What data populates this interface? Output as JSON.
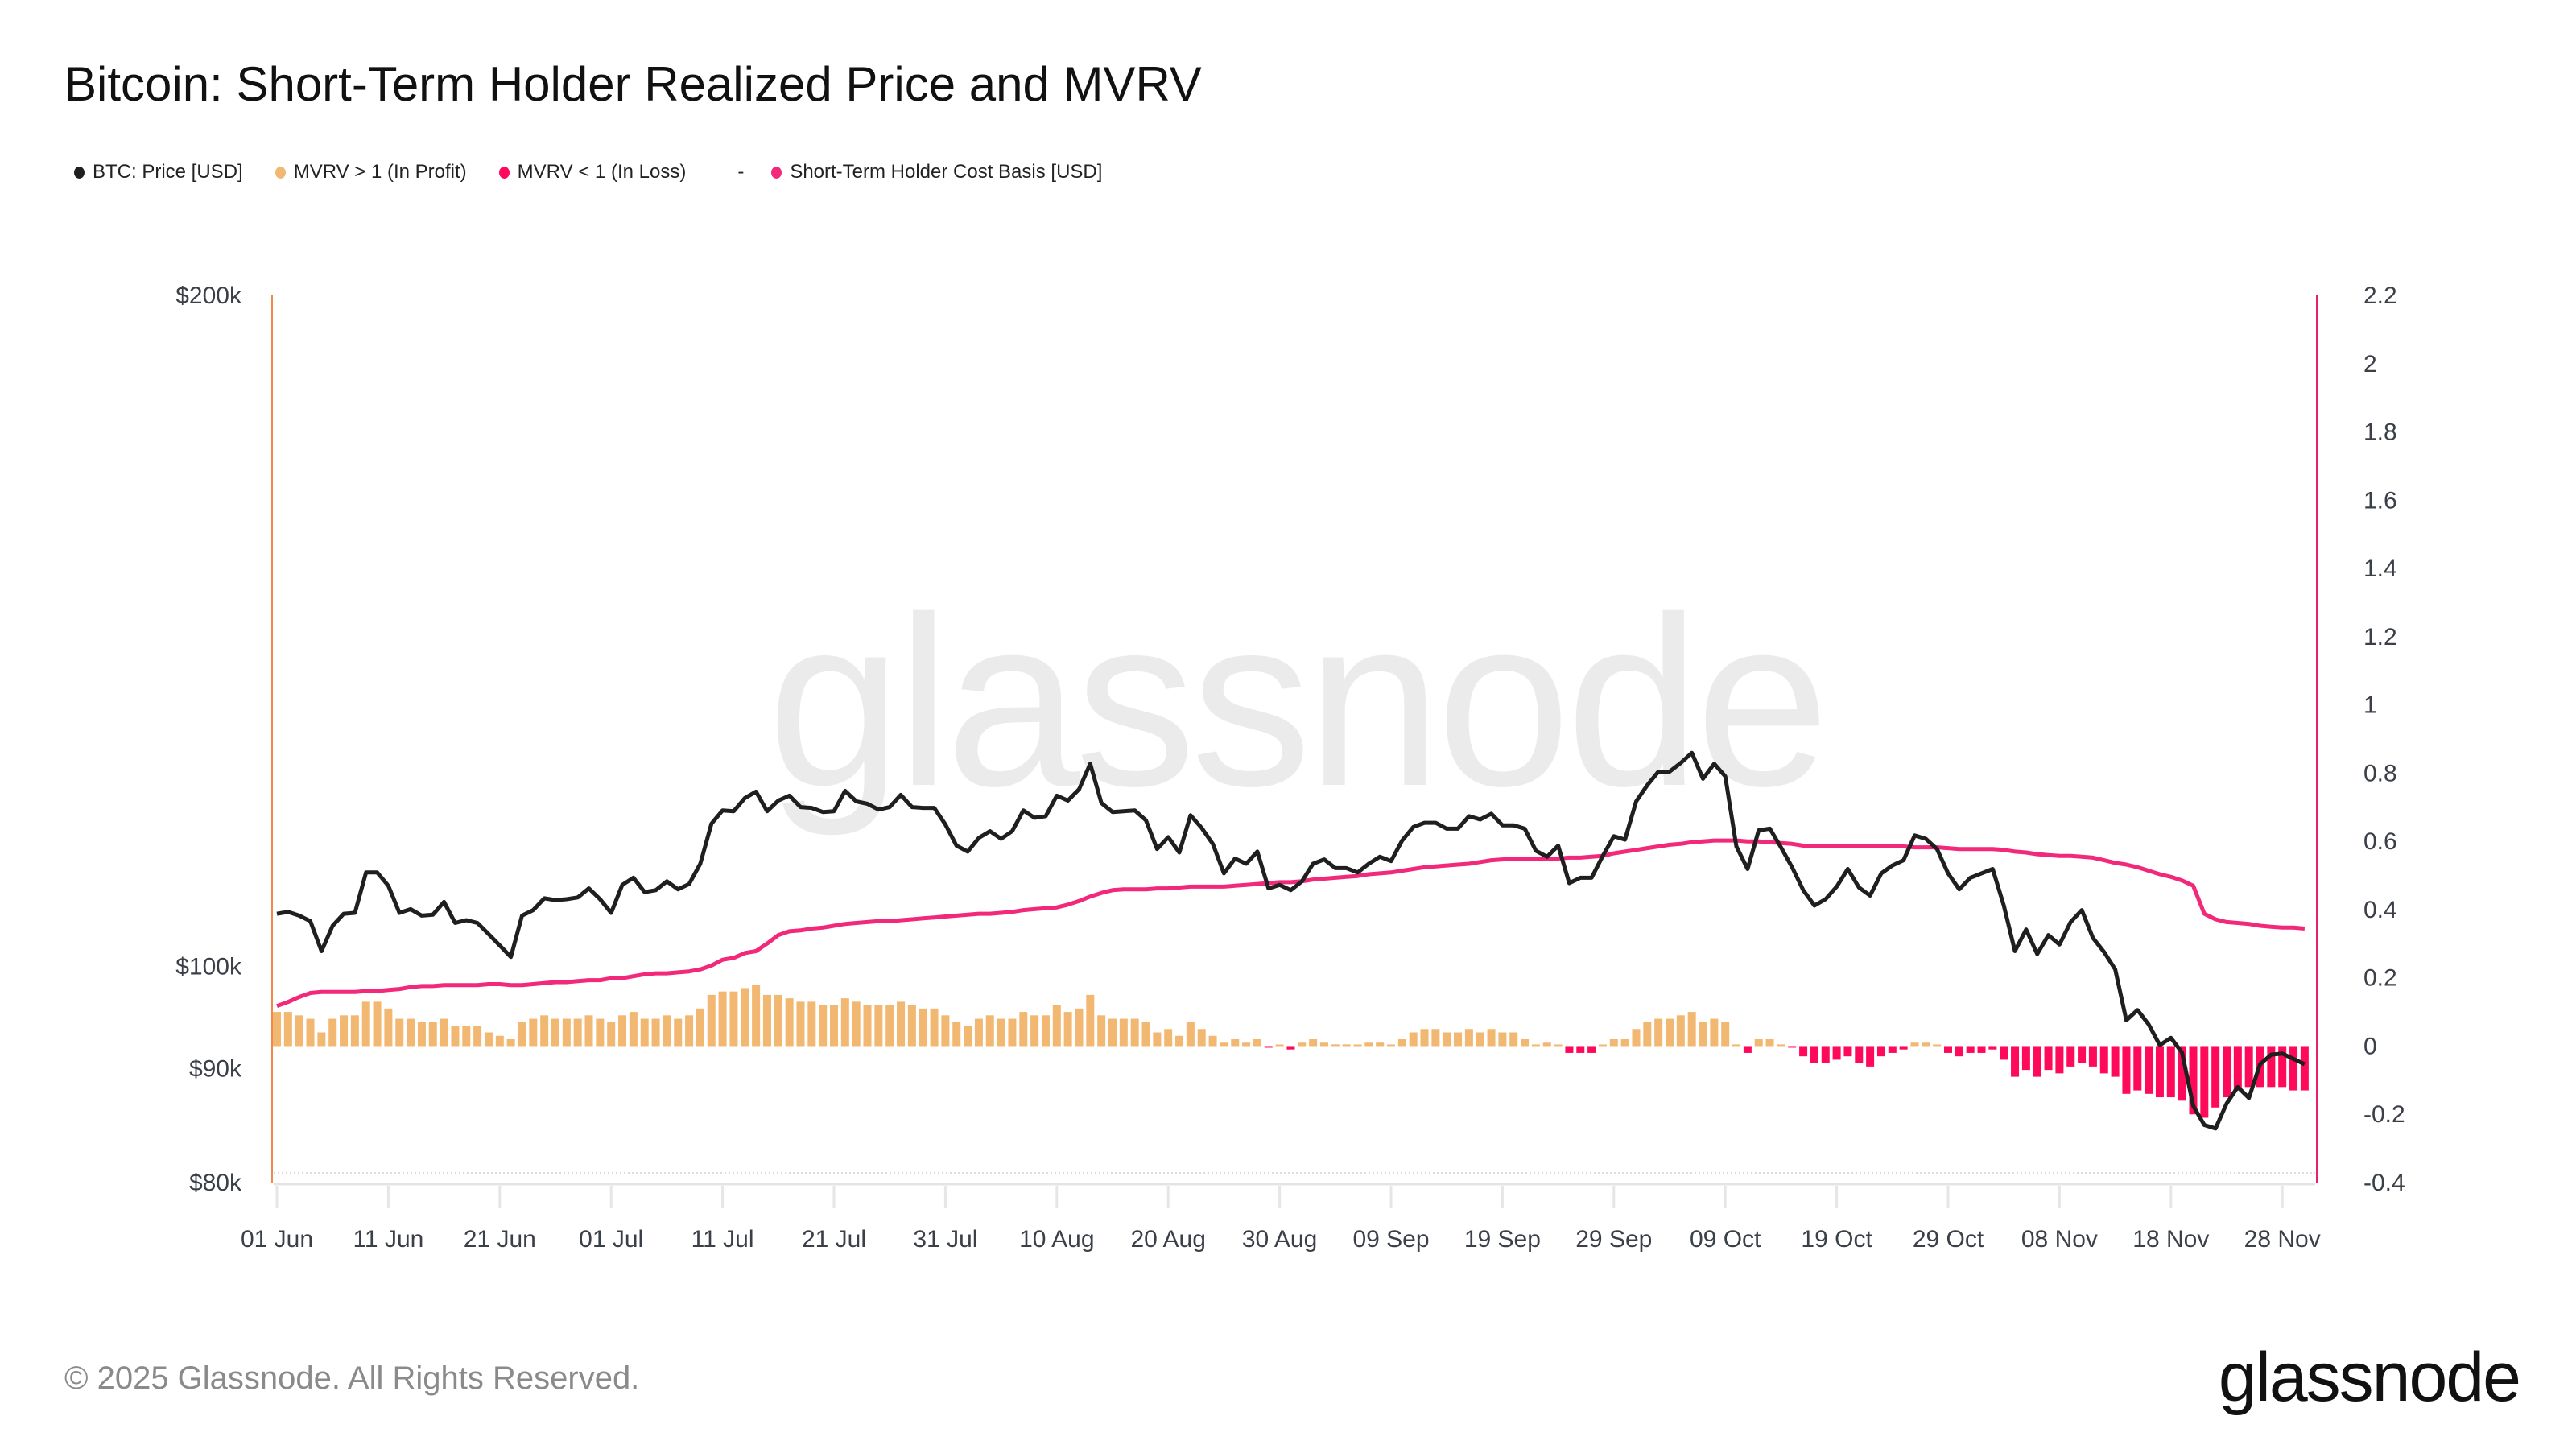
{
  "header": {
    "title": "Bitcoin: Short-Term Holder Realized Price and MVRV"
  },
  "legend": {
    "items": [
      {
        "label": "BTC: Price [USD]",
        "color": "#1f1f1f"
      },
      {
        "label": "MVRV > 1 (In Profit)",
        "color": "#f2b872"
      },
      {
        "label": "MVRV < 1 (In Loss)",
        "color": "#ff0a5b"
      },
      {
        "label": "Short-Term Holder Cost Basis [USD]",
        "color": "#f2287a"
      }
    ],
    "separator": "-"
  },
  "footer": {
    "copyright": "© 2025 Glassnode. All Rights Reserved.",
    "logo": "glassnode",
    "watermark": "glassnode"
  },
  "chart_data": {
    "type": "line",
    "title": "Bitcoin: Short-Term Holder Realized Price and MVRV",
    "xlabel": "",
    "ylabel": "",
    "grid": false,
    "legend_position": "top-left",
    "x_start": "2025-06-01",
    "x_end": "2025-11-30",
    "x_ticks": [
      "01 Jun",
      "11 Jun",
      "21 Jun",
      "01 Jul",
      "11 Jul",
      "21 Jul",
      "31 Jul",
      "10 Aug",
      "20 Aug",
      "30 Aug",
      "09 Sep",
      "19 Sep",
      "29 Sep",
      "09 Oct",
      "19 Oct",
      "29 Oct",
      "08 Nov",
      "18 Nov",
      "28 Nov"
    ],
    "y_left": {
      "scale": "log",
      "range": [
        80000,
        200000
      ],
      "ticks": [
        "$200k",
        "$100k",
        "$90k",
        "$80k"
      ],
      "tick_values": [
        200000,
        100000,
        90000,
        80000
      ]
    },
    "y_right": {
      "scale": "linear",
      "range": [
        -0.4,
        2.2
      ],
      "ticks": [
        "2.2",
        "2",
        "1.8",
        "1.6",
        "1.4",
        "1.2",
        "1",
        "0.8",
        "0.6",
        "0.4",
        "0.2",
        "0",
        "-0.2",
        "-0.4"
      ],
      "tick_values": [
        2.2,
        2,
        1.8,
        1.6,
        1.4,
        1.2,
        1,
        0.8,
        0.6,
        0.4,
        0.2,
        0,
        -0.2,
        -0.4
      ]
    },
    "series": [
      {
        "name": "BTC: Price [USD]",
        "axis": "left",
        "kind": "line",
        "unit": "USD thousands",
        "values": [
          105.6,
          105.8,
          105.4,
          104.8,
          101.6,
          104.3,
          105.6,
          105.7,
          110.2,
          110.2,
          108.7,
          105.7,
          106.1,
          105.4,
          105.5,
          106.9,
          104.6,
          104.9,
          104.6,
          103.4,
          102.2,
          101.0,
          105.4,
          106.0,
          107.3,
          107.1,
          107.2,
          107.4,
          108.4,
          107.2,
          105.7,
          108.8,
          109.6,
          108.0,
          108.2,
          109.2,
          108.3,
          108.9,
          111.2,
          115.9,
          117.5,
          117.4,
          119.0,
          119.8,
          117.4,
          118.7,
          119.3,
          117.9,
          117.8,
          117.3,
          117.4,
          119.9,
          118.6,
          118.3,
          117.6,
          117.9,
          119.4,
          117.9,
          117.8,
          117.8,
          115.8,
          113.3,
          112.6,
          114.2,
          115.0,
          114.1,
          115.0,
          117.5,
          116.6,
          116.8,
          119.3,
          118.7,
          120.1,
          123.3,
          118.4,
          117.3,
          117.4,
          117.5,
          116.3,
          112.9,
          114.3,
          112.5,
          116.9,
          115.4,
          113.5,
          110.1,
          111.8,
          111.2,
          112.6,
          108.4,
          108.8,
          108.2,
          109.2,
          111.2,
          111.7,
          110.7,
          110.7,
          110.2,
          111.2,
          112.0,
          111.5,
          113.9,
          115.5,
          116.0,
          116.0,
          115.3,
          115.3,
          116.8,
          116.4,
          117.1,
          115.7,
          115.7,
          115.3,
          112.7,
          112.0,
          113.3,
          109.0,
          109.6,
          109.6,
          112.1,
          114.4,
          114.0,
          118.6,
          120.6,
          122.3,
          122.3,
          123.4,
          124.7,
          121.4,
          123.3,
          121.7,
          113.2,
          110.6,
          115.1,
          115.3,
          113.1,
          110.8,
          108.2,
          106.5,
          107.2,
          108.6,
          110.6,
          108.5,
          107.6,
          110.1,
          111.0,
          111.6,
          114.5,
          114.1,
          112.9,
          110.1,
          108.3,
          109.6,
          110.1,
          110.6,
          106.5,
          101.6,
          103.9,
          101.3,
          103.3,
          102.3,
          104.7,
          106.0,
          103.0,
          101.5,
          99.7,
          94.6,
          95.6,
          94.2,
          92.2,
          92.9,
          91.5,
          86.6,
          84.9,
          84.6,
          86.8,
          88.3,
          87.3,
          90.4,
          91.3,
          91.4,
          90.9,
          90.4
        ]
      },
      {
        "name": "Short-Term Holder Cost Basis [USD]",
        "axis": "left",
        "kind": "line",
        "unit": "USD thousands",
        "values": [
          96.0,
          96.4,
          96.9,
          97.3,
          97.4,
          97.4,
          97.4,
          97.4,
          97.5,
          97.5,
          97.6,
          97.7,
          97.9,
          98.0,
          98.0,
          98.1,
          98.1,
          98.1,
          98.1,
          98.2,
          98.2,
          98.1,
          98.1,
          98.2,
          98.3,
          98.4,
          98.4,
          98.5,
          98.6,
          98.6,
          98.8,
          98.8,
          99.0,
          99.2,
          99.3,
          99.3,
          99.4,
          99.5,
          99.7,
          100.1,
          100.7,
          100.9,
          101.4,
          101.6,
          102.4,
          103.3,
          103.7,
          103.8,
          104.0,
          104.1,
          104.3,
          104.5,
          104.6,
          104.7,
          104.8,
          104.8,
          104.9,
          105.0,
          105.1,
          105.2,
          105.3,
          105.4,
          105.5,
          105.6,
          105.6,
          105.7,
          105.8,
          106.0,
          106.1,
          106.2,
          106.3,
          106.6,
          107.0,
          107.5,
          107.9,
          108.2,
          108.3,
          108.3,
          108.3,
          108.4,
          108.4,
          108.5,
          108.6,
          108.6,
          108.6,
          108.6,
          108.7,
          108.8,
          108.9,
          109.0,
          109.1,
          109.1,
          109.2,
          109.4,
          109.5,
          109.6,
          109.7,
          109.8,
          110.0,
          110.1,
          110.2,
          110.4,
          110.6,
          110.8,
          110.9,
          111.0,
          111.1,
          111.2,
          111.4,
          111.6,
          111.7,
          111.8,
          111.8,
          111.8,
          111.8,
          111.8,
          111.9,
          111.9,
          112.0,
          112.1,
          112.4,
          112.6,
          112.8,
          113.0,
          113.2,
          113.4,
          113.5,
          113.7,
          113.8,
          113.9,
          113.9,
          113.9,
          113.8,
          113.8,
          113.7,
          113.6,
          113.5,
          113.3,
          113.3,
          113.3,
          113.3,
          113.3,
          113.3,
          113.3,
          113.2,
          113.2,
          113.2,
          113.1,
          113.1,
          113.1,
          113.0,
          112.9,
          112.9,
          112.9,
          112.9,
          112.8,
          112.6,
          112.5,
          112.3,
          112.2,
          112.1,
          112.1,
          112.0,
          111.9,
          111.6,
          111.3,
          111.1,
          110.8,
          110.4,
          110.0,
          109.7,
          109.3,
          108.7,
          105.6,
          105.0,
          104.7,
          104.6,
          104.5,
          104.3,
          104.2,
          104.1,
          104.1,
          104.0
        ]
      },
      {
        "name": "MVRV",
        "axis": "right",
        "kind": "bar",
        "note": "positive bars = MVRV > 1 (In Profit), negative bars = MVRV < 1 (In Loss)",
        "values": [
          0.1,
          0.1,
          0.09,
          0.08,
          0.04,
          0.08,
          0.09,
          0.09,
          0.13,
          0.13,
          0.11,
          0.08,
          0.08,
          0.07,
          0.07,
          0.08,
          0.06,
          0.06,
          0.06,
          0.04,
          0.03,
          0.02,
          0.07,
          0.08,
          0.09,
          0.08,
          0.08,
          0.08,
          0.09,
          0.08,
          0.07,
          0.09,
          0.1,
          0.08,
          0.08,
          0.09,
          0.08,
          0.09,
          0.11,
          0.15,
          0.16,
          0.16,
          0.17,
          0.18,
          0.15,
          0.15,
          0.14,
          0.13,
          0.13,
          0.12,
          0.12,
          0.14,
          0.13,
          0.12,
          0.12,
          0.12,
          0.13,
          0.12,
          0.11,
          0.11,
          0.09,
          0.07,
          0.06,
          0.08,
          0.09,
          0.08,
          0.08,
          0.1,
          0.09,
          0.09,
          0.12,
          0.1,
          0.11,
          0.15,
          0.09,
          0.08,
          0.08,
          0.08,
          0.07,
          0.04,
          0.05,
          0.03,
          0.07,
          0.05,
          0.03,
          0.01,
          0.02,
          0.01,
          0.02,
          -0.003,
          0.002,
          -0.01,
          0.01,
          0.02,
          0.01,
          0.005,
          0.005,
          0.003,
          0.01,
          0.01,
          0.004,
          0.02,
          0.04,
          0.05,
          0.05,
          0.04,
          0.04,
          0.05,
          0.04,
          0.05,
          0.04,
          0.04,
          0.02,
          0.003,
          0.01,
          0.003,
          -0.02,
          -0.02,
          -0.02,
          0.004,
          0.02,
          0.02,
          0.05,
          0.07,
          0.08,
          0.08,
          0.09,
          0.1,
          0.07,
          0.08,
          0.07,
          0.002,
          -0.02,
          0.02,
          0.02,
          0.005,
          -0.002,
          -0.03,
          -0.05,
          -0.05,
          -0.04,
          -0.03,
          -0.05,
          -0.06,
          -0.03,
          -0.02,
          -0.01,
          0.01,
          0.01,
          0.0,
          -0.02,
          -0.03,
          -0.02,
          -0.02,
          -0.01,
          -0.04,
          -0.09,
          -0.07,
          -0.09,
          -0.07,
          -0.08,
          -0.06,
          -0.05,
          -0.06,
          -0.08,
          -0.09,
          -0.14,
          -0.13,
          -0.14,
          -0.15,
          -0.15,
          -0.16,
          -0.2,
          -0.21,
          -0.18,
          -0.15,
          -0.13,
          -0.12,
          -0.12,
          -0.12,
          -0.12,
          -0.13,
          -0.13
        ]
      }
    ]
  }
}
